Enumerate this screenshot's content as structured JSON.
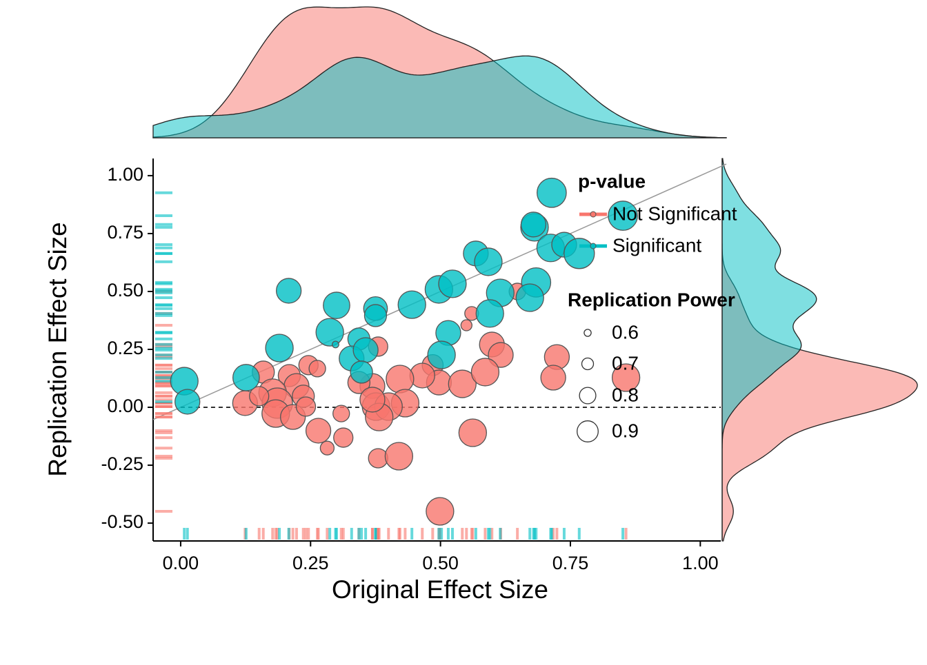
{
  "chart_data": {
    "type": "scatter",
    "xlabel": "Original Effect Size",
    "ylabel": "Replication Effect Size",
    "xlim": [
      -0.053,
      1.05
    ],
    "ylim": [
      -0.577,
      1.074
    ],
    "xticks": [
      {
        "value": 0,
        "label": "0.00"
      },
      {
        "value": 0.25,
        "label": "0.25"
      },
      {
        "value": 0.5,
        "label": "0.50"
      },
      {
        "value": 0.75,
        "label": "0.75"
      },
      {
        "value": 1,
        "label": "1.00"
      }
    ],
    "yticks": [
      {
        "value": -0.5,
        "label": "-0.50"
      },
      {
        "value": -0.25,
        "label": "-0.25"
      },
      {
        "value": 0,
        "label": "0.00"
      },
      {
        "value": 0.25,
        "label": "0.25"
      },
      {
        "value": 0.5,
        "label": "0.50"
      },
      {
        "value": 0.75,
        "label": "0.75"
      },
      {
        "value": 1,
        "label": "1.00"
      }
    ],
    "hline": 0,
    "diagonal": true,
    "rug": true,
    "marginal_density": true,
    "legend_title": "p-value",
    "series": [
      {
        "name": "Not Significant",
        "color": "#F8766D",
        "x": [
          0.648,
          0.56,
          0.55,
          0.38,
          0.599,
          0.616,
          0.724,
          0.717,
          0.857,
          0.485,
          0.497,
          0.465,
          0.422,
          0.542,
          0.586,
          0.432,
          0.369,
          0.343,
          0.376,
          0.4,
          0.382,
          0.369,
          0.246,
          0.263,
          0.159,
          0.209,
          0.223,
          0.236,
          0.177,
          0.186,
          0.183,
          0.216,
          0.124,
          0.241,
          0.265,
          0.309,
          0.313,
          0.282,
          0.38,
          0.42,
          0.562,
          0.499,
          0.151
        ],
        "y": [
          0.5,
          0.405,
          0.354,
          0.262,
          0.271,
          0.226,
          0.217,
          0.128,
          0.128,
          0.182,
          0.107,
          0.137,
          0.122,
          0.101,
          0.152,
          0.018,
          0.092,
          0.107,
          0.003,
          0.003,
          -0.042,
          0.033,
          0.182,
          0.167,
          0.152,
          0.137,
          0.092,
          0.048,
          0.063,
          0.018,
          -0.027,
          -0.042,
          0.018,
          0.003,
          -0.101,
          -0.027,
          -0.131,
          -0.176,
          -0.22,
          -0.211,
          -0.11,
          -0.449,
          0.048
        ],
        "size": [
          0.75,
          0.7,
          0.65,
          0.8,
          0.9,
          0.9,
          0.9,
          0.9,
          0.95,
          0.83,
          0.9,
          0.9,
          0.95,
          0.95,
          0.95,
          0.95,
          0.9,
          0.85,
          0.95,
          0.95,
          0.95,
          0.9,
          0.8,
          0.75,
          0.85,
          0.85,
          0.9,
          0.85,
          0.95,
          1.0,
          0.95,
          0.9,
          0.9,
          0.8,
          0.9,
          0.75,
          0.8,
          0.7,
          0.8,
          0.95,
          0.95,
          0.95,
          0.8
        ]
      },
      {
        "name": "Significant",
        "color": "#00BFC4",
        "x": [
          0.714,
          0.851,
          0.681,
          0.679,
          0.712,
          0.738,
          0.767,
          0.568,
          0.592,
          0.684,
          0.672,
          0.615,
          0.497,
          0.523,
          0.595,
          0.445,
          0.208,
          0.3,
          0.375,
          0.375,
          0.287,
          0.298,
          0.343,
          0.329,
          0.356,
          0.515,
          0.502,
          0.19,
          0.126,
          0.007,
          0.013,
          0.348
        ],
        "y": [
          0.926,
          0.827,
          0.777,
          0.789,
          0.688,
          0.702,
          0.664,
          0.664,
          0.628,
          0.539,
          0.473,
          0.494,
          0.509,
          0.533,
          0.405,
          0.443,
          0.503,
          0.44,
          0.426,
          0.396,
          0.324,
          0.271,
          0.295,
          0.211,
          0.247,
          0.321,
          0.226,
          0.256,
          0.128,
          0.113,
          0.024,
          0.152
        ],
        "size": [
          0.98,
          0.98,
          0.95,
          0.9,
          0.95,
          0.9,
          1.0,
          0.9,
          0.95,
          0.98,
          0.95,
          0.95,
          0.95,
          0.95,
          0.95,
          0.95,
          0.9,
          0.93,
          0.88,
          0.85,
          0.95,
          0.57,
          0.85,
          0.9,
          0.9,
          0.9,
          0.95,
          0.95,
          0.93,
          0.95,
          0.9,
          0.85
        ]
      }
    ],
    "size_legend": {
      "title": "Replication Power",
      "values": [
        0.6,
        0.7,
        0.8,
        0.9
      ]
    }
  }
}
